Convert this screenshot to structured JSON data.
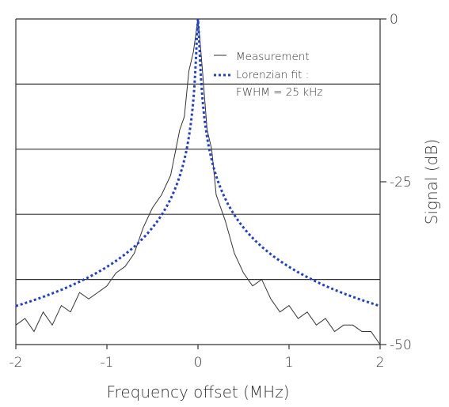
{
  "chart_data": {
    "type": "line",
    "title": "",
    "xlabel": "Frequency offset (MHz)",
    "ylabel": "Signal (dB)",
    "xlim": [
      -2,
      2
    ],
    "ylim": [
      -50,
      0
    ],
    "x_ticks": [
      -2,
      -1,
      0,
      1,
      2
    ],
    "x_tick_labels": [
      "-2",
      "-1",
      "0",
      "1",
      "2"
    ],
    "y_ticks": [
      0,
      -25,
      -50
    ],
    "y_tick_labels": [
      "0",
      "-25",
      "-50"
    ],
    "y_axis_side": "right",
    "grid": {
      "horizontal_lines_at": [
        -10,
        -20,
        -30,
        -40
      ]
    },
    "legend": {
      "placement": "top-right inside",
      "entries": [
        "Measurement",
        "Lorenzian fit :",
        "FWHM = 25 kHz"
      ]
    },
    "series": [
      {
        "name": "Measurement",
        "style": "solid",
        "color": "#333333",
        "x": [
          -2.0,
          -1.9,
          -1.8,
          -1.7,
          -1.6,
          -1.5,
          -1.4,
          -1.3,
          -1.2,
          -1.1,
          -1.0,
          -0.9,
          -0.8,
          -0.7,
          -0.6,
          -0.5,
          -0.4,
          -0.3,
          -0.2,
          -0.15,
          -0.1,
          -0.05,
          -0.02,
          0.0,
          0.02,
          0.05,
          0.1,
          0.15,
          0.2,
          0.3,
          0.4,
          0.5,
          0.6,
          0.7,
          0.8,
          0.9,
          1.0,
          1.1,
          1.2,
          1.3,
          1.4,
          1.5,
          1.6,
          1.7,
          1.8,
          1.9,
          2.0
        ],
        "y": [
          -47,
          -46,
          -48,
          -45,
          -47,
          -44,
          -45,
          -42,
          -43,
          -42,
          -41,
          -39,
          -38,
          -36,
          -32,
          -29,
          -27,
          -24,
          -17,
          -15,
          -8,
          -5,
          -2,
          0,
          -3,
          -8,
          -17,
          -20,
          -27,
          -31,
          -36,
          -39,
          -41,
          -40,
          -43,
          -45,
          -44,
          -46,
          -45,
          -47,
          -46,
          -48,
          -47,
          -47,
          -48,
          -48,
          -50
        ]
      },
      {
        "name": "Lorenzian fit",
        "style": "dotted",
        "color": "#1f3fd1",
        "gamma_MHz": 0.0125,
        "peak_dB": 0,
        "floor_dB": -50
      }
    ]
  }
}
